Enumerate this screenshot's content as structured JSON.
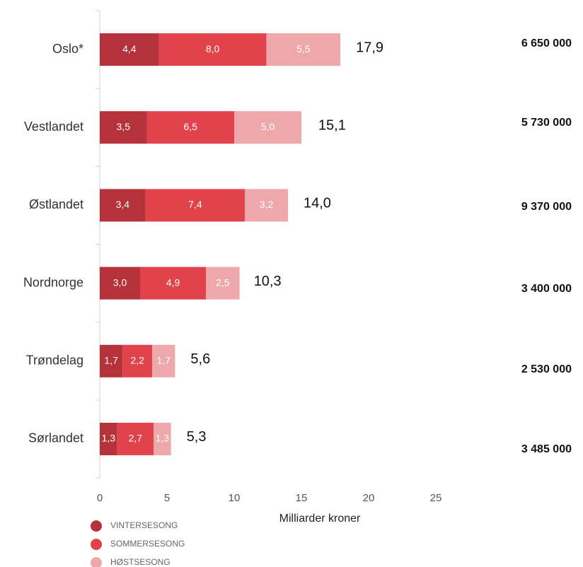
{
  "chart_data": {
    "type": "stacked-barh",
    "categories": [
      "Oslo*",
      "Vestlandet",
      "Østlandet",
      "Nordnorge",
      "Trøndelag",
      "Sørlandet"
    ],
    "series": [
      {
        "name": "VINTERSESONG",
        "color": "#b5323a",
        "values": [
          4.4,
          3.5,
          3.4,
          3.0,
          1.7,
          1.3
        ],
        "value_labels": [
          "4,4",
          "3,5",
          "3,4",
          "3,0",
          "1,7",
          "1,3"
        ]
      },
      {
        "name": "SOMMERSESONG",
        "color": "#e0434b",
        "values": [
          8.0,
          6.5,
          7.4,
          4.9,
          2.2,
          2.7
        ],
        "value_labels": [
          "8,0",
          "6,5",
          "7,4",
          "4,9",
          "2,2",
          "2,7"
        ]
      },
      {
        "name": "HØSTSESONG",
        "color": "#eea8ab",
        "values": [
          5.5,
          5.0,
          3.2,
          2.5,
          1.7,
          1.3
        ],
        "value_labels": [
          "5,5",
          "5,0",
          "3,2",
          "2,5",
          "1,7",
          "1,3"
        ]
      }
    ],
    "totals": [
      17.9,
      15.1,
      14.0,
      10.3,
      5.6,
      5.3
    ],
    "total_labels": [
      "17,9",
      "15,1",
      "14,0",
      "10,3",
      "5,6",
      "5,3"
    ],
    "side_labels": [
      "6 650 000",
      "5 730 000",
      "9 370 000",
      "3 400 000",
      "2 530 000",
      "3 485 000"
    ],
    "xlabel": "Milliarder kroner",
    "xlim": [
      0,
      25
    ],
    "xticks": [
      0,
      5,
      10,
      15,
      20,
      25
    ],
    "legend": "bottom-left"
  }
}
